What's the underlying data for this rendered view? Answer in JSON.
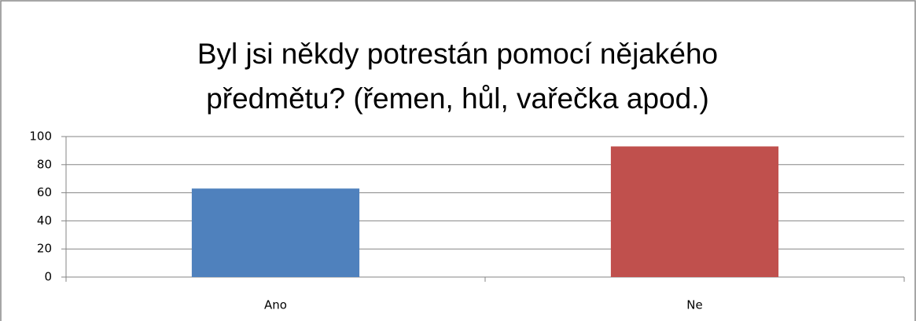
{
  "chart_data": {
    "type": "bar",
    "title": "Byl jsi někdy potrestán pomocí nějakého předmětu? (řemen, hůl, vařečka apod.)",
    "categories": [
      "Ano",
      "Ne"
    ],
    "values": [
      63,
      93
    ],
    "colors": [
      "#4f81bd",
      "#c0504d"
    ],
    "ylim": [
      0,
      100
    ],
    "yticks": [
      0,
      20,
      40,
      60,
      80,
      100
    ],
    "grid": true
  }
}
